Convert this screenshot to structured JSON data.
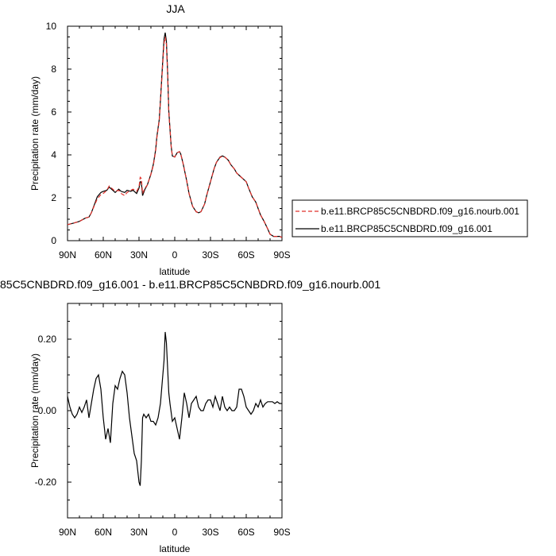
{
  "chart_data": [
    {
      "type": "line",
      "title": "JJA",
      "xlabel": "latitude",
      "ylabel": "Precipitation rate (mm/day)",
      "x_ticks": [
        90,
        60,
        30,
        0,
        -30,
        -60,
        -90
      ],
      "x_tick_labels": [
        "90N",
        "60N",
        "30N",
        "0",
        "30S",
        "60S",
        "90S"
      ],
      "xlim": [
        90,
        -90
      ],
      "ylim": [
        0,
        10
      ],
      "y_ticks": [
        0,
        2,
        4,
        6,
        8,
        10
      ],
      "y_tick_labels": [
        "0",
        "2",
        "4",
        "6",
        "8",
        "10"
      ],
      "legend_position": "right",
      "series": [
        {
          "name": "b.e11.BRCP85C5CNBDRD.f09_g16.nourb.001",
          "color": "#e0302a",
          "dash": "dashed",
          "x": [
            90,
            85,
            80,
            75,
            72,
            70,
            67,
            65,
            62,
            60,
            57,
            55,
            52,
            50,
            47,
            45,
            42,
            40,
            37,
            35,
            32,
            30,
            29,
            28,
            27,
            25,
            23,
            20,
            18,
            16,
            15,
            13,
            12,
            11,
            10,
            9,
            8,
            7,
            6,
            5,
            3,
            2,
            0,
            -2,
            -4,
            -5,
            -7,
            -10,
            -12,
            -15,
            -18,
            -20,
            -22,
            -25,
            -27,
            -30,
            -33,
            -35,
            -38,
            -40,
            -42,
            -45,
            -47,
            -50,
            -52,
            -55,
            -58,
            -60,
            -62,
            -65,
            -68,
            -70,
            -72,
            -75,
            -78,
            -80,
            -83,
            -85,
            -88,
            -90
          ],
          "y": [
            0.75,
            0.82,
            0.9,
            1.05,
            1.1,
            1.3,
            1.7,
            1.95,
            2.15,
            2.2,
            2.35,
            2.55,
            2.4,
            2.3,
            2.35,
            2.2,
            2.1,
            2.25,
            2.35,
            2.4,
            2.3,
            2.5,
            2.95,
            2.9,
            2.2,
            2.45,
            2.6,
            3.1,
            3.5,
            4.2,
            4.8,
            5.6,
            6.5,
            7.4,
            8.3,
            9.2,
            9.5,
            9.15,
            7.8,
            6.0,
            4.4,
            3.95,
            3.9,
            4.1,
            4.15,
            4.05,
            3.6,
            2.8,
            2.2,
            1.6,
            1.35,
            1.3,
            1.35,
            1.7,
            2.15,
            2.75,
            3.35,
            3.65,
            3.88,
            3.93,
            3.9,
            3.75,
            3.55,
            3.35,
            3.15,
            3.0,
            2.85,
            2.75,
            2.45,
            2.05,
            1.8,
            1.5,
            1.2,
            0.9,
            0.55,
            0.3,
            0.2,
            0.2,
            0.2,
            0.15
          ]
        },
        {
          "name": "b.e11.BRCP85C5CNBDRD.f09_g16.001",
          "color": "#000000",
          "dash": "solid",
          "x": [
            90,
            85,
            80,
            75,
            72,
            70,
            67,
            65,
            62,
            60,
            57,
            55,
            52,
            50,
            47,
            45,
            42,
            40,
            37,
            35,
            32,
            30,
            29,
            28,
            27,
            25,
            23,
            20,
            18,
            16,
            15,
            13,
            12,
            11,
            10,
            9,
            8,
            7,
            6,
            5,
            3,
            2,
            0,
            -2,
            -4,
            -5,
            -7,
            -10,
            -12,
            -15,
            -18,
            -20,
            -22,
            -25,
            -27,
            -30,
            -33,
            -35,
            -38,
            -40,
            -42,
            -45,
            -47,
            -50,
            -52,
            -55,
            -58,
            -60,
            -62,
            -65,
            -68,
            -70,
            -72,
            -75,
            -78,
            -80,
            -83,
            -85,
            -88,
            -90
          ],
          "y": [
            0.75,
            0.82,
            0.9,
            1.05,
            1.1,
            1.3,
            1.75,
            2.05,
            2.25,
            2.3,
            2.35,
            2.5,
            2.35,
            2.25,
            2.4,
            2.3,
            2.25,
            2.35,
            2.3,
            2.35,
            2.2,
            2.45,
            2.75,
            2.7,
            2.1,
            2.4,
            2.6,
            3.1,
            3.55,
            4.25,
            4.85,
            5.65,
            6.55,
            7.5,
            8.45,
            9.4,
            9.7,
            9.3,
            7.9,
            6.05,
            4.4,
            3.95,
            3.9,
            4.1,
            4.15,
            4.05,
            3.6,
            2.8,
            2.2,
            1.6,
            1.35,
            1.3,
            1.35,
            1.7,
            2.15,
            2.75,
            3.35,
            3.65,
            3.9,
            3.95,
            3.9,
            3.75,
            3.55,
            3.35,
            3.15,
            3.0,
            2.85,
            2.75,
            2.45,
            2.05,
            1.8,
            1.5,
            1.2,
            0.9,
            0.55,
            0.3,
            0.2,
            0.2,
            0.2,
            0.15
          ]
        }
      ]
    },
    {
      "type": "line",
      "title": "85C5CNBDRD.f09_g16.001 - b.e11.BRCP85C5CNBDRD.f09_g16.nourb.001",
      "xlabel": "latitude",
      "ylabel": "Precipitation rate (mm/day)",
      "x_ticks": [
        90,
        60,
        30,
        0,
        -30,
        -60,
        -90
      ],
      "x_tick_labels": [
        "90N",
        "60N",
        "30N",
        "0",
        "30S",
        "60S",
        "90S"
      ],
      "xlim": [
        90,
        -90
      ],
      "ylim": [
        -0.3,
        0.3
      ],
      "y_ticks": [
        -0.2,
        0.0,
        0.2
      ],
      "y_tick_labels": [
        "-0.20",
        "0.00",
        "0.20"
      ],
      "series": [
        {
          "name": "",
          "color": "#000000",
          "dash": "solid",
          "x": [
            90,
            88,
            86,
            84,
            82,
            80,
            78,
            76,
            74,
            72,
            70,
            68,
            66,
            64,
            62,
            60,
            58,
            56,
            54,
            52,
            50,
            48,
            46,
            44,
            42,
            40,
            38,
            36,
            34,
            32,
            30,
            29,
            28,
            27,
            26,
            24,
            22,
            20,
            18,
            16,
            14,
            12,
            10,
            9,
            8,
            7,
            6,
            5,
            4,
            2,
            0,
            -2,
            -4,
            -6,
            -8,
            -10,
            -12,
            -14,
            -16,
            -18,
            -20,
            -22,
            -24,
            -26,
            -28,
            -30,
            -32,
            -34,
            -36,
            -38,
            -40,
            -42,
            -44,
            -46,
            -48,
            -50,
            -52,
            -54,
            -56,
            -58,
            -60,
            -62,
            -64,
            -66,
            -68,
            -70,
            -72,
            -74,
            -76,
            -78,
            -80,
            -82,
            -84,
            -86,
            -88,
            -90
          ],
          "y": [
            0.04,
            0.01,
            -0.01,
            -0.02,
            -0.01,
            0.01,
            -0.005,
            0.01,
            0.03,
            -0.02,
            0.02,
            0.06,
            0.09,
            0.1,
            0.06,
            -0.02,
            -0.08,
            -0.05,
            -0.09,
            0.02,
            0.07,
            0.06,
            0.09,
            0.11,
            0.1,
            0.05,
            -0.02,
            -0.07,
            -0.12,
            -0.14,
            -0.2,
            -0.21,
            -0.14,
            -0.02,
            -0.01,
            -0.02,
            -0.01,
            -0.03,
            -0.03,
            -0.04,
            -0.02,
            0.02,
            0.1,
            0.14,
            0.22,
            0.19,
            0.12,
            0.05,
            0.02,
            -0.03,
            -0.02,
            -0.05,
            -0.08,
            -0.02,
            0.05,
            0.02,
            -0.02,
            0.02,
            0.03,
            0.04,
            0.01,
            0.0,
            0.0,
            0.02,
            0.03,
            0.03,
            0.01,
            0.04,
            0.02,
            0.0,
            0.04,
            0.01,
            0.0,
            0.01,
            0.0,
            0.0,
            0.01,
            0.06,
            0.06,
            0.04,
            0.01,
            0.0,
            -0.01,
            0.0,
            0.02,
            0.01,
            0.03,
            0.01,
            0.02,
            0.025,
            0.025,
            0.025,
            0.02,
            0.025,
            0.02,
            0.02
          ]
        }
      ]
    }
  ]
}
